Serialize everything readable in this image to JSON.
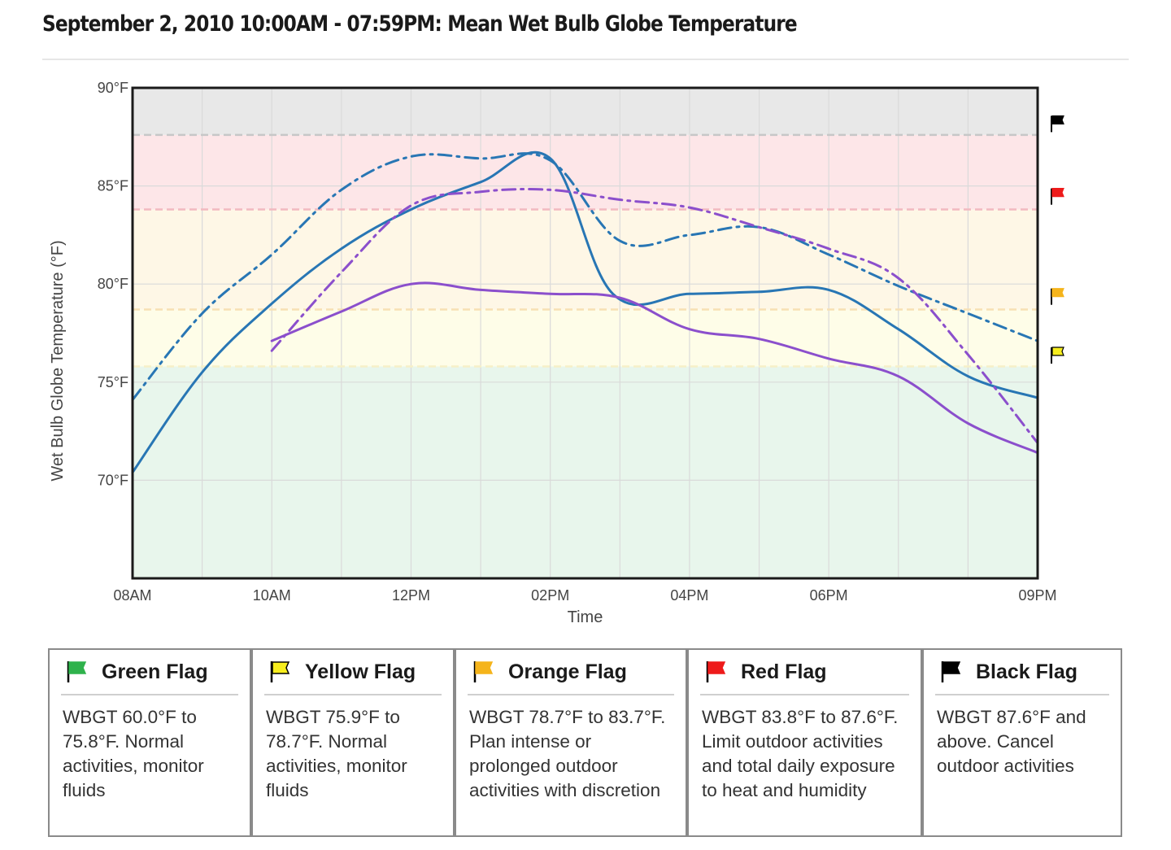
{
  "title": "September 2, 2010 10:00AM - 07:59PM: Mean Wet Bulb Globe Temperature",
  "chart_data": {
    "type": "line",
    "xlabel": "Time",
    "ylabel": "Wet Bulb Globe Temperature (°F)",
    "x_ticks": [
      {
        "hour": 8,
        "label": "08AM"
      },
      {
        "hour": 10,
        "label": "10AM"
      },
      {
        "hour": 12,
        "label": "12PM"
      },
      {
        "hour": 14,
        "label": "02PM"
      },
      {
        "hour": 16,
        "label": "04PM"
      },
      {
        "hour": 18,
        "label": "06PM"
      },
      {
        "hour": 21,
        "label": "09PM"
      }
    ],
    "y_ticks": [
      {
        "value": 70,
        "label": "70°F"
      },
      {
        "value": 75,
        "label": "75°F"
      },
      {
        "value": 80,
        "label": "80°F"
      },
      {
        "value": 85,
        "label": "85°F"
      },
      {
        "value": 90,
        "label": "90°F"
      }
    ],
    "xlim": [
      8,
      21
    ],
    "ylim": [
      65,
      90
    ],
    "grid": true,
    "bands": [
      {
        "name": "green",
        "from": 65,
        "to": 75.8,
        "color": "#e8f6ec"
      },
      {
        "name": "yellow",
        "from": 75.8,
        "to": 78.7,
        "color": "#fefde8"
      },
      {
        "name": "orange",
        "from": 78.7,
        "to": 83.8,
        "color": "#fef7e6"
      },
      {
        "name": "red",
        "from": 83.8,
        "to": 87.6,
        "color": "#fde6e8"
      },
      {
        "name": "black",
        "from": 87.6,
        "to": 90,
        "color": "#e8e8e8"
      }
    ],
    "thresholds": [
      {
        "value": 75.8,
        "color": "#f6f0c8"
      },
      {
        "value": 78.7,
        "color": "#f7e0b4"
      },
      {
        "value": 83.8,
        "color": "#f2b9c0"
      },
      {
        "value": 87.6,
        "color": "#c7c7c7"
      }
    ],
    "flag_markers": [
      {
        "flag": "black",
        "value": 88.2
      },
      {
        "flag": "red",
        "value": 84.5
      },
      {
        "flag": "orange",
        "value": 79.4
      },
      {
        "flag": "yellow",
        "value": 76.4
      }
    ],
    "series": [
      {
        "color": "#2876b4",
        "dash": "solid",
        "x": [
          8,
          9,
          10,
          11,
          12,
          13,
          14,
          14.9,
          16,
          17,
          18,
          19,
          20,
          21
        ],
        "y": [
          70.4,
          75.5,
          79.0,
          81.8,
          83.8,
          85.2,
          86.4,
          79.5,
          79.5,
          79.6,
          79.7,
          77.7,
          75.3,
          74.2
        ]
      },
      {
        "color": "#2876b4",
        "dash": "dashdot",
        "x": [
          8,
          9,
          10,
          11,
          12,
          13,
          14,
          15,
          16,
          17,
          18,
          19,
          20,
          21
        ],
        "y": [
          74.1,
          78.5,
          81.5,
          84.8,
          86.5,
          86.4,
          86.3,
          82.2,
          82.5,
          82.9,
          81.5,
          79.9,
          78.5,
          77.1
        ]
      },
      {
        "color": "#8b4fcc",
        "dash": "solid",
        "x": [
          10,
          11,
          12,
          13,
          14,
          15,
          16,
          17,
          18,
          19,
          20,
          21
        ],
        "y": [
          77.1,
          78.6,
          80.0,
          79.7,
          79.5,
          79.3,
          77.7,
          77.2,
          76.2,
          75.3,
          72.9,
          71.4
        ]
      },
      {
        "color": "#8b4fcc",
        "dash": "dashdot",
        "x": [
          10,
          11,
          12,
          13,
          14,
          15,
          16,
          17,
          18,
          19,
          20,
          21
        ],
        "y": [
          76.6,
          80.6,
          84.0,
          84.7,
          84.8,
          84.3,
          83.9,
          82.9,
          81.8,
          80.3,
          76.4,
          71.9
        ]
      }
    ]
  },
  "flag_colors": {
    "green": "#2fb24c",
    "yellow": "#f7ee1e",
    "orange": "#f5b41b",
    "red": "#ee1b1b",
    "black": "#000000"
  },
  "legend": [
    {
      "flag": "green",
      "icon": "green-flag-icon",
      "name": "Green Flag",
      "desc": "WBGT 60.0°F to 75.8°F. Normal activities, monitor fluids"
    },
    {
      "flag": "yellow",
      "icon": "yellow-flag-icon",
      "name": "Yellow Flag",
      "desc": "WBGT 75.9°F to 78.7°F. Normal activities, monitor fluids"
    },
    {
      "flag": "orange",
      "icon": "orange-flag-icon",
      "name": "Orange Flag",
      "desc": "WBGT 78.7°F to 83.7°F. Plan intense or prolonged outdoor activities with discretion"
    },
    {
      "flag": "red",
      "icon": "red-flag-icon",
      "name": "Red Flag",
      "desc": "WBGT 83.8°F to 87.6°F. Limit outdoor activities and total daily exposure to heat and humidity"
    },
    {
      "flag": "black",
      "icon": "black-flag-icon",
      "name": "Black Flag",
      "desc": "WBGT 87.6°F and above. Cancel outdoor activities"
    }
  ]
}
